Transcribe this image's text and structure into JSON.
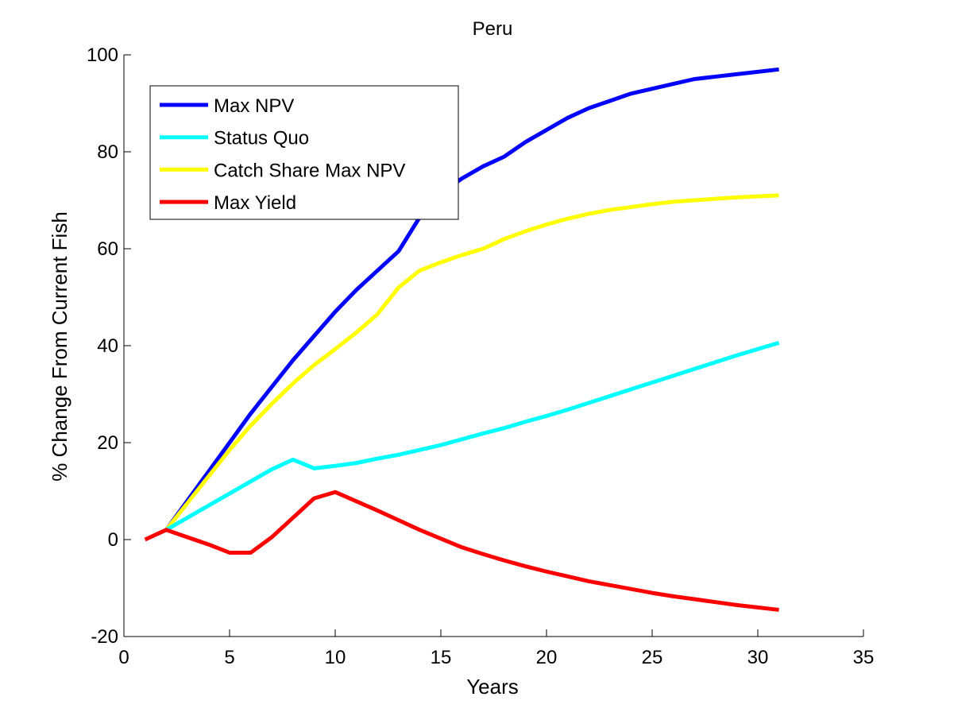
{
  "chart_data": {
    "type": "line",
    "title": "Peru",
    "xlabel": "Years",
    "ylabel": "% Change From Current Fish",
    "xlim": [
      0,
      35
    ],
    "ylim": [
      -20,
      100
    ],
    "xticks": [
      0,
      5,
      10,
      15,
      20,
      25,
      30,
      35
    ],
    "yticks": [
      -20,
      0,
      20,
      40,
      60,
      80,
      100
    ],
    "grid": false,
    "legend_position": "top-left",
    "series": [
      {
        "name": "Max NPV",
        "color": "#0000ff",
        "x": [
          2,
          3,
          4,
          5,
          6,
          7,
          8,
          9,
          10,
          11,
          12,
          13,
          14,
          15,
          16,
          17,
          18,
          19,
          20,
          21,
          22,
          23,
          24,
          25,
          26,
          27,
          28,
          29,
          30,
          31
        ],
        "y": [
          2,
          8,
          14,
          20,
          26,
          31.5,
          37,
          42,
          47,
          51.5,
          55.5,
          59.5,
          66.5,
          71.5,
          74.5,
          77,
          79,
          82,
          84.5,
          87,
          89,
          90.5,
          92,
          93,
          94,
          95,
          95.5,
          96,
          96.5,
          97
        ]
      },
      {
        "name": "Status Quo",
        "color": "#00ffff",
        "x": [
          2,
          3,
          4,
          5,
          6,
          7,
          8,
          9,
          10,
          11,
          12,
          13,
          14,
          15,
          16,
          17,
          18,
          19,
          20,
          21,
          22,
          23,
          24,
          25,
          26,
          27,
          28,
          29,
          30,
          31
        ],
        "y": [
          2,
          4.5,
          7,
          9.5,
          12,
          14.5,
          16.5,
          14.7,
          15.2,
          15.8,
          16.7,
          17.5,
          18.5,
          19.5,
          20.7,
          21.9,
          23,
          24.3,
          25.5,
          26.8,
          28.2,
          29.6,
          31,
          32.4,
          33.8,
          35.2,
          36.6,
          38,
          39.3,
          40.6
        ]
      },
      {
        "name": "Catch Share Max NPV",
        "color": "#ffff00",
        "x": [
          2,
          3,
          4,
          5,
          6,
          7,
          8,
          9,
          10,
          11,
          12,
          13,
          14,
          15,
          16,
          17,
          18,
          19,
          20,
          21,
          22,
          23,
          24,
          25,
          26,
          27,
          28,
          29,
          30,
          31
        ],
        "y": [
          2,
          7.5,
          13,
          18.5,
          23.5,
          28,
          32.2,
          36,
          39.3,
          42.7,
          46.5,
          52,
          55.5,
          57.2,
          58.7,
          60,
          62,
          63.6,
          65,
          66.2,
          67.2,
          68,
          68.6,
          69.2,
          69.7,
          70,
          70.3,
          70.6,
          70.8,
          71
        ]
      },
      {
        "name": "Max Yield",
        "color": "#ff0000",
        "x": [
          1,
          2,
          3,
          4,
          5,
          6,
          7,
          8,
          9,
          10,
          11,
          12,
          13,
          14,
          15,
          16,
          17,
          18,
          19,
          20,
          21,
          22,
          23,
          24,
          25,
          26,
          27,
          28,
          29,
          30,
          31
        ],
        "y": [
          0,
          2,
          0.5,
          -1,
          -2.7,
          -2.7,
          0.5,
          4.5,
          8.5,
          9.8,
          7.9,
          6,
          4,
          2,
          0.2,
          -1.6,
          -3,
          -4.3,
          -5.5,
          -6.6,
          -7.6,
          -8.6,
          -9.4,
          -10.2,
          -11,
          -11.7,
          -12.3,
          -12.9,
          -13.5,
          -14,
          -14.5
        ]
      }
    ]
  }
}
